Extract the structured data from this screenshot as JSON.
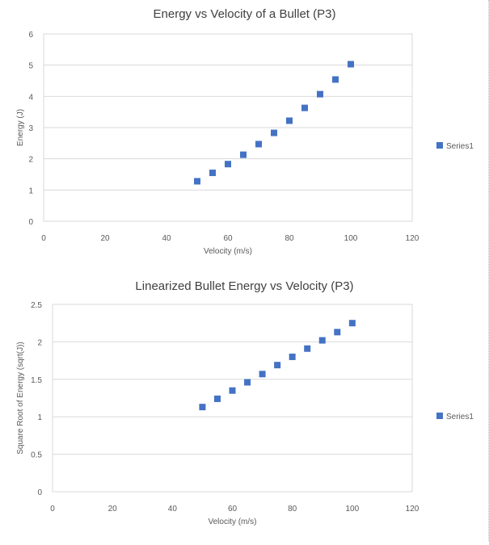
{
  "chart_data": [
    {
      "type": "scatter",
      "title": "Energy vs Velocity of a Bullet (P3)",
      "xlabel": "Velocity (m/s)",
      "ylabel": "Energy (J)",
      "xlim": [
        0,
        120
      ],
      "ylim": [
        0,
        6
      ],
      "xticks": [
        "0",
        "20",
        "40",
        "60",
        "80",
        "100",
        "120"
      ],
      "yticks": [
        "0",
        "1",
        "2",
        "3",
        "4",
        "5",
        "6"
      ],
      "grid": true,
      "legend_position": "right",
      "series": [
        {
          "name": "Series1",
          "color": "#4472c4",
          "marker": "square",
          "x": [
            50,
            55,
            60,
            65,
            70,
            75,
            80,
            85,
            90,
            95,
            100
          ],
          "y": [
            1.28,
            1.55,
            1.83,
            2.13,
            2.47,
            2.83,
            3.22,
            3.63,
            4.07,
            4.54,
            5.03
          ]
        }
      ]
    },
    {
      "type": "scatter",
      "title": "Linearized Bullet Energy vs Velocity (P3)",
      "xlabel": "Velocity (m/s)",
      "ylabel": "Square Root of Energy (sqrt(J))",
      "xlim": [
        0,
        120
      ],
      "ylim": [
        0,
        2.5
      ],
      "xticks": [
        "0",
        "20",
        "40",
        "60",
        "80",
        "100",
        "120"
      ],
      "yticks": [
        "0",
        "0.5",
        "1",
        "1.5",
        "2",
        "2.5"
      ],
      "grid": true,
      "legend_position": "right",
      "series": [
        {
          "name": "Series1",
          "color": "#4472c4",
          "marker": "square",
          "x": [
            50,
            55,
            60,
            65,
            70,
            75,
            80,
            85,
            90,
            95,
            100
          ],
          "y": [
            1.13,
            1.24,
            1.35,
            1.46,
            1.57,
            1.69,
            1.8,
            1.91,
            2.02,
            2.13,
            2.25
          ]
        }
      ]
    }
  ]
}
